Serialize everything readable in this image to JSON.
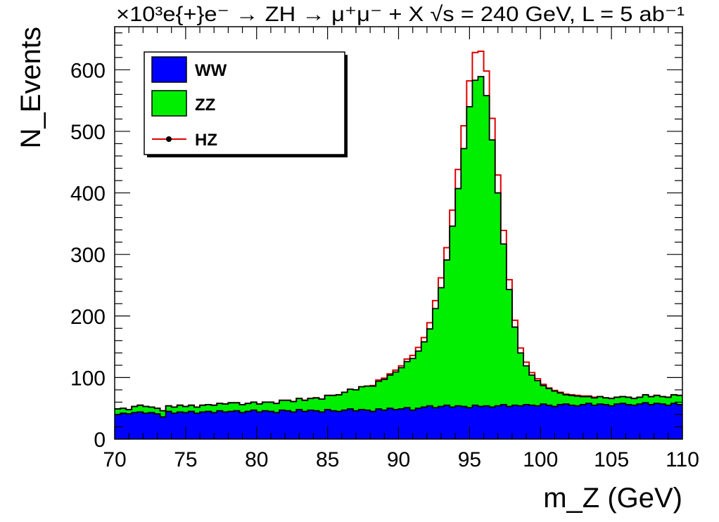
{
  "chart_data": {
    "type": "area",
    "title": "×10³e{+}e⁻ → ZH → μ⁺μ⁻ + X  √s = 240 GeV, L = 5 ab⁻¹",
    "xlabel": "m_Z (GeV)",
    "ylabel": "N_Events",
    "xlim": [
      70,
      110
    ],
    "ylim": [
      0,
      670
    ],
    "x_ticks": [
      "70",
      "75",
      "80",
      "85",
      "90",
      "95",
      "100",
      "105",
      "110"
    ],
    "y_ticks": [
      "0",
      "100",
      "200",
      "300",
      "400",
      "500",
      "600"
    ],
    "bin_width": 0.4,
    "stacked": true,
    "legend_position": "top-left",
    "series": [
      {
        "name": "WW",
        "color": "#0000ff",
        "values": [
          40,
          42,
          41,
          43,
          44,
          42,
          43,
          41,
          36,
          45,
          42,
          44,
          43,
          45,
          42,
          44,
          45,
          43,
          46,
          44,
          45,
          46,
          43,
          45,
          47,
          44,
          46,
          45,
          43,
          47,
          46,
          44,
          48,
          45,
          47,
          46,
          44,
          48,
          46,
          45,
          47,
          49,
          46,
          48,
          47,
          45,
          49,
          47,
          50,
          48,
          49,
          51,
          47,
          50,
          52,
          54,
          51,
          53,
          55,
          52,
          54,
          53,
          51,
          55,
          53,
          54,
          52,
          54,
          56,
          53,
          55,
          54,
          56,
          55,
          54,
          57,
          55,
          53,
          56,
          57,
          55,
          54,
          56,
          58,
          55,
          57,
          56,
          54,
          57,
          58,
          56,
          55,
          57,
          59,
          56,
          58,
          57,
          55,
          58,
          56
        ]
      },
      {
        "name": "ZZ",
        "color": "#00ee00",
        "values": [
          49,
          50,
          48,
          53,
          55,
          53,
          52,
          50,
          46,
          54,
          52,
          55,
          53,
          55,
          52,
          55,
          56,
          55,
          58,
          57,
          59,
          59,
          56,
          58,
          60,
          57,
          60,
          60,
          58,
          63,
          63,
          61,
          66,
          63,
          66,
          67,
          65,
          71,
          71,
          72,
          76,
          81,
          80,
          85,
          86,
          86,
          94,
          97,
          104,
          109,
          116,
          126,
          131,
          143,
          158,
          179,
          212,
          246,
          291,
          346,
          407,
          472,
          540,
          583,
          589,
          558,
          486,
          400,
          317,
          243,
          182,
          140,
          119,
          104,
          95,
          87,
          82,
          78,
          75,
          72,
          71,
          70,
          69,
          69,
          67,
          69,
          67,
          66,
          68,
          69,
          68,
          66,
          68,
          72,
          69,
          71,
          69,
          68,
          72,
          71
        ]
      },
      {
        "name": "HZ",
        "color": "#dd0000",
        "values": [
          49,
          50,
          48,
          53,
          55,
          53,
          52,
          50,
          46,
          54,
          52,
          55,
          53,
          55,
          52,
          55,
          56,
          55,
          58,
          57,
          59,
          59,
          56,
          58,
          60,
          57,
          60,
          60,
          58,
          63,
          63,
          61,
          66,
          63,
          66,
          67,
          65,
          71,
          71,
          72,
          76,
          81,
          80,
          85,
          86,
          87,
          96,
          99,
          106,
          112,
          119,
          130,
          136,
          149,
          165,
          189,
          225,
          262,
          311,
          372,
          438,
          509,
          582,
          628,
          630,
          598,
          521,
          429,
          339,
          259,
          193,
          148,
          125,
          108,
          98,
          89,
          83,
          79,
          76,
          73,
          72,
          71,
          70,
          70,
          68,
          69,
          67,
          66,
          68,
          69,
          68,
          66,
          68,
          72,
          69,
          71,
          69,
          68,
          72,
          71
        ]
      }
    ]
  }
}
